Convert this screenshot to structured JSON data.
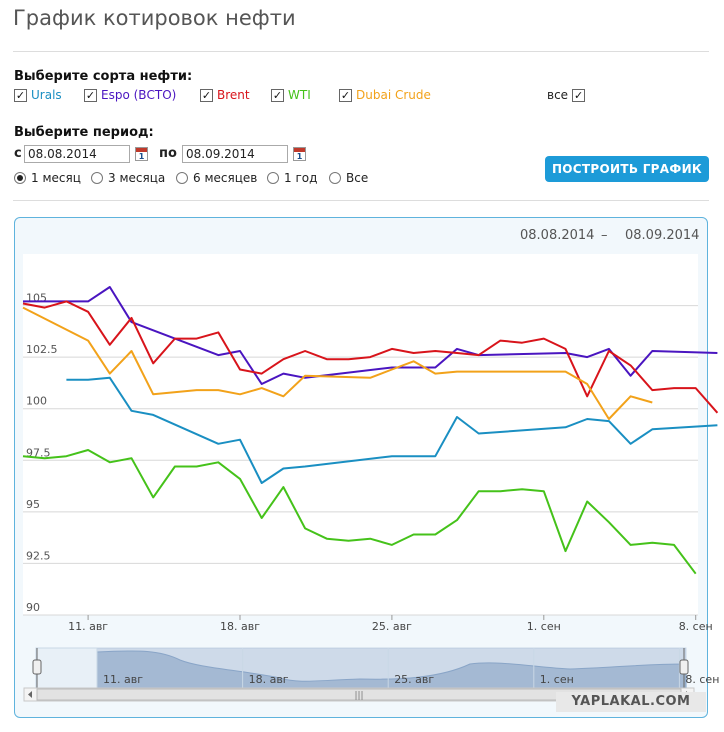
{
  "header": {
    "title": "График котировок нефти"
  },
  "filters": {
    "grades_label": "Выберите сорта нефти:",
    "grades": [
      {
        "label": "Urals",
        "color": "#1a8fc2",
        "checked": true
      },
      {
        "label": "Espo (ВСТО)",
        "color": "#4a15c0",
        "checked": true
      },
      {
        "label": "Brent",
        "color": "#d8141b",
        "checked": true
      },
      {
        "label": "WTI",
        "color": "#45c21a",
        "checked": true
      },
      {
        "label": "Dubai Crude",
        "color": "#f2a21a",
        "checked": true
      }
    ],
    "all_label": "все",
    "period_label": "Выберите период:",
    "from_label": "с",
    "from_value": "08.08.2014",
    "to_label": "по",
    "to_value": "08.09.2014",
    "calendar_day": "1",
    "periods": [
      {
        "label": "1 месяц",
        "selected": true
      },
      {
        "label": "3 месяца",
        "selected": false
      },
      {
        "label": "6 месяцев",
        "selected": false
      },
      {
        "label": "1 год",
        "selected": false
      },
      {
        "label": "Все",
        "selected": false
      }
    ],
    "build_button": "ПОСТРОИТЬ ГРАФИК"
  },
  "range_display": {
    "from": "08.08.2014",
    "dash": "–",
    "to": "08.09.2014"
  },
  "navigator": {
    "x_labels": [
      "11. авг",
      "18. авг",
      "25. авг",
      "1. сен",
      "8. сен"
    ],
    "scroll_grip": "|||"
  },
  "watermark": "YAPLAKAL.COM",
  "chart_data": {
    "type": "line",
    "x_ticks": [
      "11. авг",
      "18. авг",
      "25. авг",
      "1. сен",
      "8. сен"
    ],
    "y_ticks": [
      "105",
      "102.5",
      "100",
      "97.5",
      "95",
      "92.5",
      "90"
    ],
    "ylim": [
      90,
      107.5
    ],
    "grid": true,
    "series": [
      {
        "name": "Urals",
        "color": "#1a8fc2",
        "points": [
          [
            2,
            101.4
          ],
          [
            3,
            101.4
          ],
          [
            4,
            101.5
          ],
          [
            5,
            99.9
          ],
          [
            6,
            99.7
          ],
          [
            9,
            98.3
          ],
          [
            10,
            98.5
          ],
          [
            11,
            96.4
          ],
          [
            12,
            97.1
          ],
          [
            13,
            97.2
          ],
          [
            17,
            97.7
          ],
          [
            19,
            97.7
          ],
          [
            20,
            99.6
          ],
          [
            21,
            98.8
          ],
          [
            25,
            99.1
          ],
          [
            26,
            99.5
          ],
          [
            27,
            99.4
          ],
          [
            28,
            98.3
          ],
          [
            29,
            99.0
          ],
          [
            32,
            99.2
          ]
        ]
      },
      {
        "name": "Espo (ВСТО)",
        "color": "#4a15c0",
        "points": [
          [
            0,
            105.2
          ],
          [
            2,
            105.2
          ],
          [
            3,
            105.2
          ],
          [
            4,
            105.9
          ],
          [
            5,
            104.2
          ],
          [
            7,
            103.4
          ],
          [
            9,
            102.6
          ],
          [
            10,
            102.8
          ],
          [
            11,
            101.2
          ],
          [
            12,
            101.7
          ],
          [
            13,
            101.5
          ],
          [
            17,
            102.0
          ],
          [
            19,
            102.0
          ],
          [
            20,
            102.9
          ],
          [
            21,
            102.6
          ],
          [
            25,
            102.7
          ],
          [
            26,
            102.5
          ],
          [
            27,
            102.9
          ],
          [
            28,
            101.6
          ],
          [
            29,
            102.8
          ],
          [
            32,
            102.7
          ]
        ]
      },
      {
        "name": "Brent",
        "color": "#d8141b",
        "points": [
          [
            0,
            105.1
          ],
          [
            1,
            104.9
          ],
          [
            2,
            105.2
          ],
          [
            3,
            104.7
          ],
          [
            4,
            103.1
          ],
          [
            5,
            104.4
          ],
          [
            6,
            102.2
          ],
          [
            7,
            103.4
          ],
          [
            8,
            103.4
          ],
          [
            9,
            103.7
          ],
          [
            10,
            101.9
          ],
          [
            11,
            101.7
          ],
          [
            12,
            102.4
          ],
          [
            13,
            102.8
          ],
          [
            14,
            102.4
          ],
          [
            15,
            102.4
          ],
          [
            16,
            102.5
          ],
          [
            17,
            102.9
          ],
          [
            18,
            102.7
          ],
          [
            19,
            102.8
          ],
          [
            20,
            102.7
          ],
          [
            21,
            102.6
          ],
          [
            22,
            103.3
          ],
          [
            23,
            103.2
          ],
          [
            24,
            103.4
          ],
          [
            25,
            102.9
          ],
          [
            26,
            100.6
          ],
          [
            27,
            102.8
          ],
          [
            28,
            102.1
          ],
          [
            29,
            100.9
          ],
          [
            30,
            101.0
          ],
          [
            31,
            101.0
          ],
          [
            32,
            99.8
          ]
        ]
      },
      {
        "name": "WTI",
        "color": "#45c21a",
        "points": [
          [
            0,
            97.7
          ],
          [
            1,
            97.6
          ],
          [
            2,
            97.7
          ],
          [
            3,
            98.0
          ],
          [
            4,
            97.4
          ],
          [
            5,
            97.6
          ],
          [
            6,
            95.7
          ],
          [
            7,
            97.2
          ],
          [
            8,
            97.2
          ],
          [
            9,
            97.4
          ],
          [
            10,
            96.6
          ],
          [
            11,
            94.7
          ],
          [
            12,
            96.2
          ],
          [
            13,
            94.2
          ],
          [
            14,
            93.7
          ],
          [
            15,
            93.6
          ],
          [
            16,
            93.7
          ],
          [
            17,
            93.4
          ],
          [
            18,
            93.9
          ],
          [
            19,
            93.9
          ],
          [
            20,
            94.6
          ],
          [
            21,
            96.0
          ],
          [
            22,
            96.0
          ],
          [
            23,
            96.1
          ],
          [
            24,
            96.0
          ],
          [
            25,
            93.1
          ],
          [
            26,
            95.5
          ],
          [
            27,
            94.5
          ],
          [
            28,
            93.4
          ],
          [
            29,
            93.5
          ],
          [
            30,
            93.4
          ],
          [
            31,
            92.0
          ]
        ]
      },
      {
        "name": "Dubai Crude",
        "color": "#f2a21a",
        "points": [
          [
            0,
            104.9
          ],
          [
            3,
            103.3
          ],
          [
            4,
            101.7
          ],
          [
            5,
            102.8
          ],
          [
            6,
            100.7
          ],
          [
            8,
            100.9
          ],
          [
            9,
            100.9
          ],
          [
            10,
            100.7
          ],
          [
            11,
            101.0
          ],
          [
            12,
            100.6
          ],
          [
            13,
            101.6
          ],
          [
            16,
            101.5
          ],
          [
            17,
            101.9
          ],
          [
            18,
            102.3
          ],
          [
            19,
            101.7
          ],
          [
            20,
            101.8
          ],
          [
            25,
            101.8
          ],
          [
            26,
            101.2
          ],
          [
            27,
            99.5
          ],
          [
            28,
            100.6
          ],
          [
            29,
            100.3
          ]
        ]
      }
    ]
  }
}
